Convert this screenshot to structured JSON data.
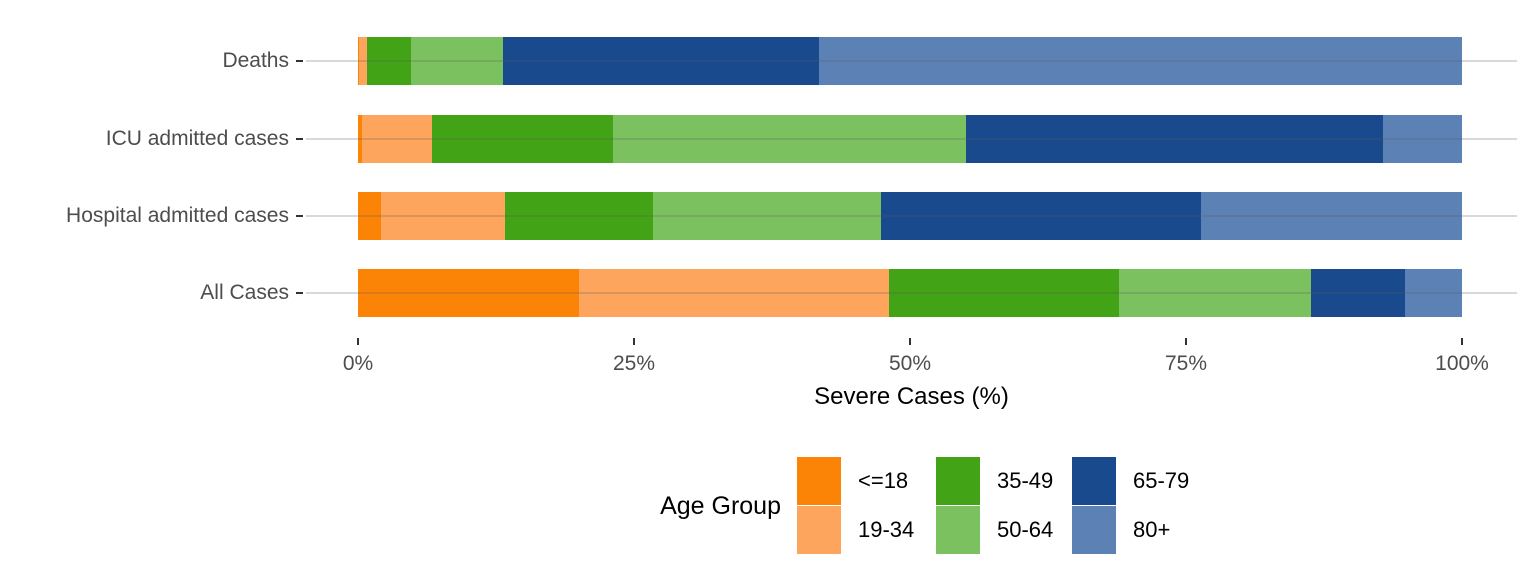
{
  "chart_data": {
    "type": "bar",
    "orientation": "horizontal",
    "stacked": true,
    "unit": "percent",
    "title": "",
    "xlabel": "Severe Cases (%)",
    "ylabel": "",
    "xlim": [
      0,
      100
    ],
    "grid": "horizontal-only",
    "categories_order": "top-to-bottom",
    "categories": [
      "Deaths",
      "ICU admitted cases",
      "Hospital admitted cases",
      "All Cases"
    ],
    "series": [
      {
        "name": "<=18",
        "color": "#FB8305",
        "values": [
          0.1,
          0.4,
          2.1,
          20.0
        ]
      },
      {
        "name": "19-34",
        "color": "#FDA55D",
        "values": [
          0.7,
          6.3,
          11.2,
          28.1
        ]
      },
      {
        "name": "35-49",
        "color": "#41A315",
        "values": [
          4.0,
          16.4,
          13.4,
          20.8
        ]
      },
      {
        "name": "50-64",
        "color": "#7CC15F",
        "values": [
          8.3,
          32.0,
          20.7,
          17.4
        ]
      },
      {
        "name": "65-79",
        "color": "#1A4A8E",
        "values": [
          28.7,
          37.7,
          29.0,
          8.5
        ]
      },
      {
        "name": "80+",
        "color": "#5C81B5",
        "values": [
          58.2,
          7.2,
          23.6,
          5.2
        ]
      }
    ],
    "x_ticks": [
      {
        "value": 0,
        "label": "0%"
      },
      {
        "value": 25,
        "label": "25%"
      },
      {
        "value": 50,
        "label": "50%"
      },
      {
        "value": 75,
        "label": "75%"
      },
      {
        "value": 100,
        "label": "100%"
      }
    ],
    "legend_title": "Age Group",
    "legend_position": "bottom",
    "legend_columns": 3,
    "colors": {
      "gridline": "#D9D9D9",
      "tick": "#333333",
      "axis_text": "#4D4D4D",
      "title_text": "#000000"
    }
  }
}
